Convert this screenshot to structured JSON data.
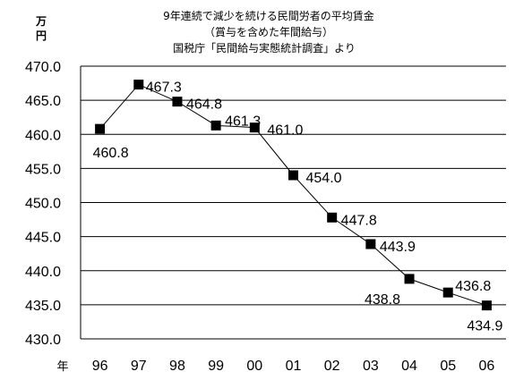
{
  "chart_data": {
    "type": "line",
    "title_lines": [
      "9年連続で減少を続ける民間労者の平均賃金",
      "（賞与を含めた年間給与）",
      "国税庁「民間給与実態統計調査」より"
    ],
    "ylabel": "万円",
    "xlabel_prefix": "年",
    "categories": [
      "96",
      "97",
      "98",
      "99",
      "00",
      "01",
      "02",
      "03",
      "04",
      "05",
      "06"
    ],
    "values": [
      460.8,
      467.3,
      464.8,
      461.3,
      461.0,
      454.0,
      447.8,
      443.9,
      438.8,
      436.8,
      434.9
    ],
    "data_labels": [
      "460.8",
      "467.3",
      "464.8",
      "461.3",
      "461.0",
      "454.0",
      "447.8",
      "443.9",
      "438.8",
      "436.8",
      "434.9"
    ],
    "ylim": [
      430,
      470
    ],
    "yticks": [
      "470.0",
      "465.0",
      "460.0",
      "455.0",
      "450.0",
      "445.0",
      "440.0",
      "435.0",
      "430.0"
    ],
    "grid": true,
    "legend": "none",
    "colors": {
      "line": "#000000",
      "marker": "#000000",
      "grid": "#000000"
    }
  }
}
